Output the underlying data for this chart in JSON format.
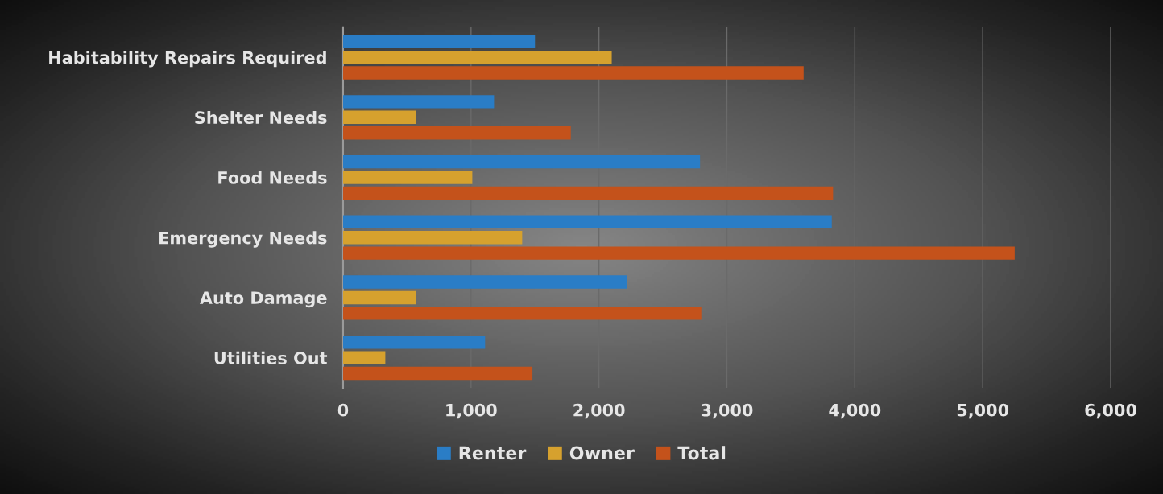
{
  "chart_data": {
    "type": "bar",
    "orientation": "horizontal",
    "categories": [
      "Habitability Repairs Required",
      "Shelter Needs",
      "Food Needs",
      "Emergency Needs",
      "Auto Damage",
      "Utilities Out"
    ],
    "series": [
      {
        "name": "Renter",
        "color": "#2a7dc6",
        "values": [
          1500,
          1180,
          2790,
          3820,
          2220,
          1110
        ]
      },
      {
        "name": "Owner",
        "color": "#d6a12e",
        "values": [
          2100,
          570,
          1010,
          1400,
          570,
          330
        ]
      },
      {
        "name": "Total",
        "color": "#c4521b",
        "values": [
          3600,
          1780,
          3830,
          5250,
          2800,
          1480
        ]
      }
    ],
    "xlim": [
      0,
      6000
    ],
    "xticks": [
      {
        "value": 0,
        "label": "0"
      },
      {
        "value": 1000,
        "label": "1,000"
      },
      {
        "value": 2000,
        "label": "2,000"
      },
      {
        "value": 3000,
        "label": "3,000"
      },
      {
        "value": 4000,
        "label": "4,000"
      },
      {
        "value": 5000,
        "label": "5,000"
      },
      {
        "value": 6000,
        "label": "6,000"
      }
    ],
    "grid": "x",
    "legend": "bottom"
  }
}
